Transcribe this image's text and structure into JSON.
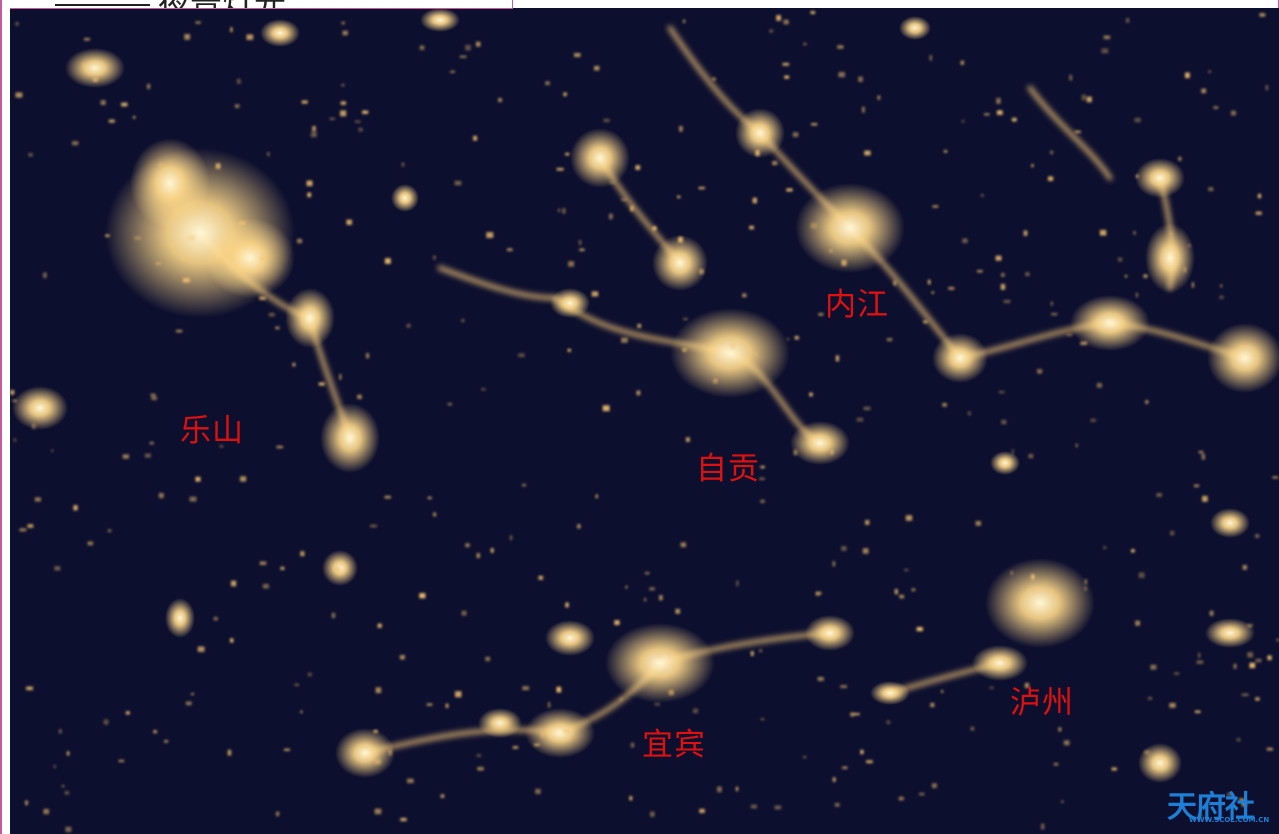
{
  "header": {
    "title": "夜景灯光"
  },
  "map": {
    "background_color": "#0c0f2e",
    "light_color": "#ffd98a",
    "label_color": "#e01010",
    "cities": [
      {
        "id": "neijiang",
        "name": "内江"
      },
      {
        "id": "leshan",
        "name": "乐山"
      },
      {
        "id": "zigong",
        "name": "自贡"
      },
      {
        "id": "luzhou",
        "name": "泸州"
      },
      {
        "id": "yibin",
        "name": "宜宾"
      }
    ]
  },
  "watermark": {
    "text": "天府社区",
    "url": "WWW.SCOL.COM.CN"
  }
}
